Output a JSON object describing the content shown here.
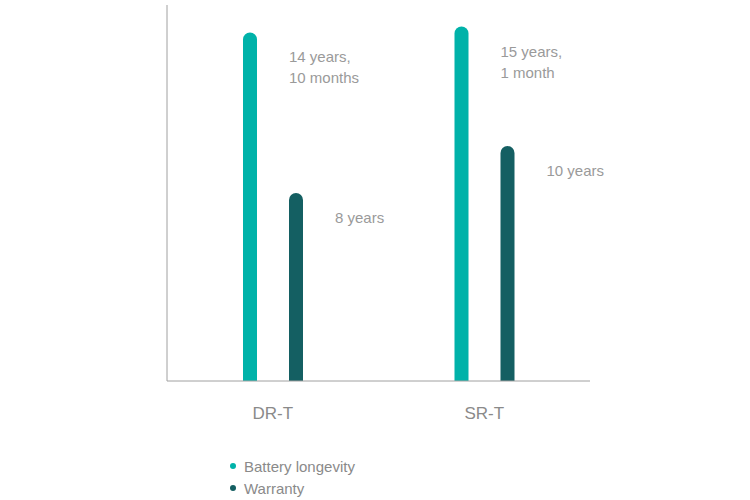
{
  "chart_data": {
    "type": "bar",
    "categories": [
      "DR-T",
      "SR-T"
    ],
    "series": [
      {
        "name": "Battery longevity",
        "color": "#00b2a9",
        "values": [
          14.833,
          15.083
        ],
        "value_labels": [
          "14 years, 10 months",
          "15 years, 1 month"
        ]
      },
      {
        "name": "Warranty",
        "color": "#145f62",
        "values": [
          8,
          10
        ],
        "value_labels": [
          "8 years",
          "10 years"
        ]
      }
    ],
    "ylim": [
      0,
      16
    ],
    "data_labels": true,
    "tick_labels": "x",
    "legend": "bottom",
    "grid": false
  }
}
